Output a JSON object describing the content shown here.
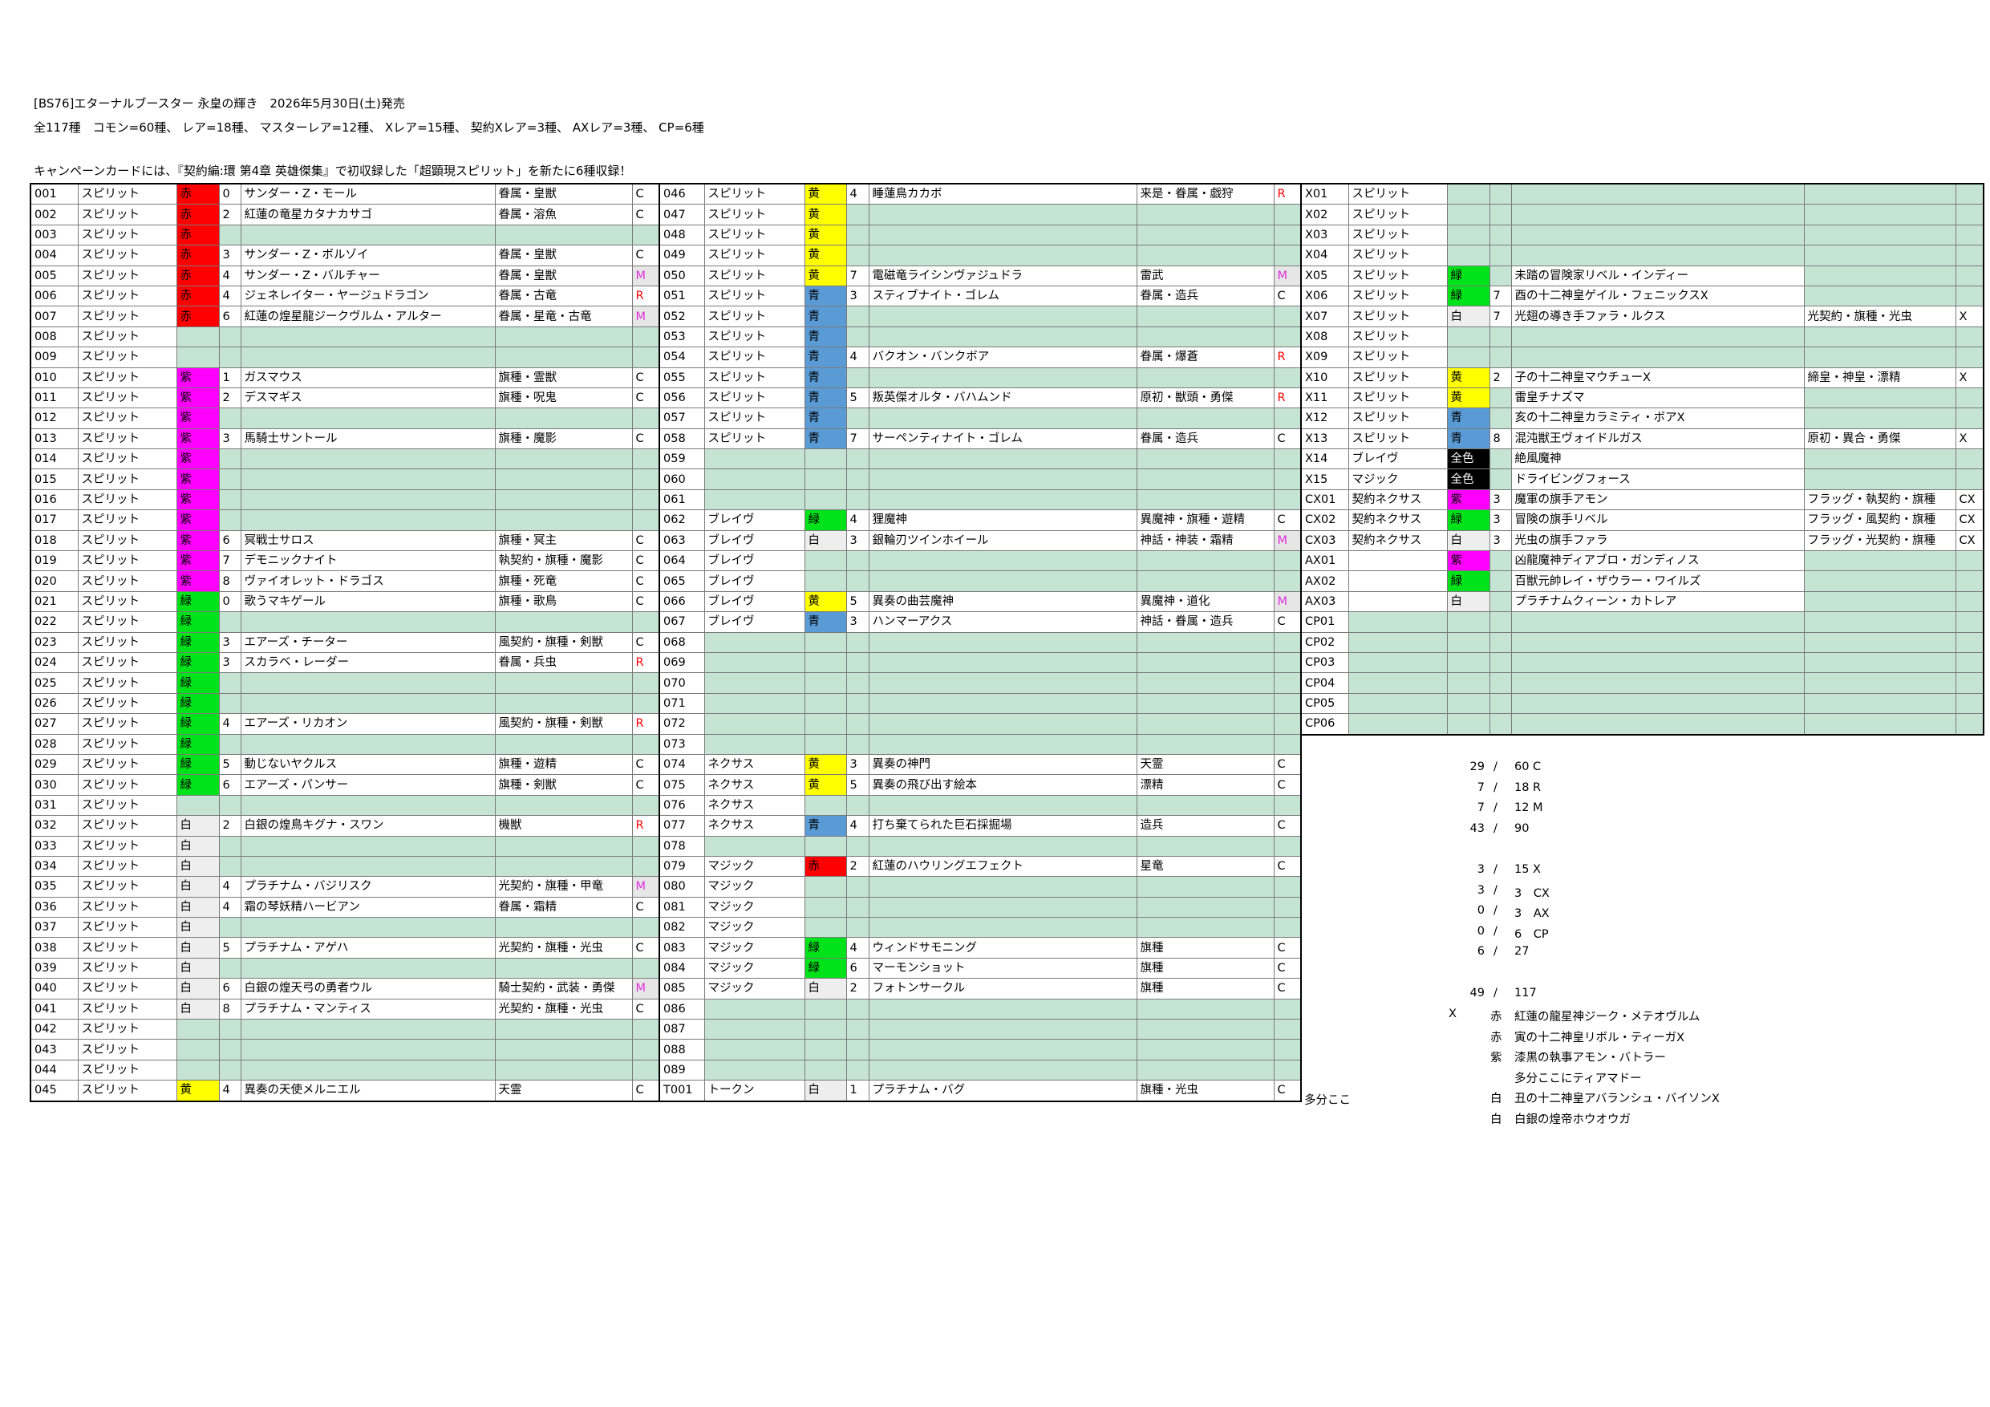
{
  "header": {
    "title": "[BS76]エターナルブースター 永皇の輝き　2026年5月30日(土)発売",
    "summary": "全117種　コモン=60種、 レア=18種、 マスターレア=12種、 Xレア=15種、 契約Xレア=3種、 AXレア=3種、 CP=6種",
    "note": "キャンペーンカードには、『契約編:環 第4章 英雄傑集』で初収録した「超顕現スピリット」を新たに6種収録！"
  },
  "cell_colors": {
    "赤": "#ff0000",
    "紫": "#ff00ff",
    "緑": "#00e21a",
    "黄": "#ffff00",
    "青": "#5b9bd5",
    "白": "#eeeeee",
    "全色": "#000000"
  },
  "rarity_colors": {
    "M": "#e030e0",
    "R": "#ff0000"
  },
  "empty_fill": "#c6e4d4",
  "tables": [
    {
      "rows": [
        [
          "001",
          "スピリット",
          "赤",
          "0",
          "サンダー・Z・モール",
          "眷属・皇獣",
          "C"
        ],
        [
          "002",
          "スピリット",
          "赤",
          "2",
          "紅蓮の竜星カタナカサゴ",
          "眷属・溶魚",
          "C"
        ],
        [
          "003",
          "スピリット",
          "赤",
          null,
          null,
          null,
          null
        ],
        [
          "004",
          "スピリット",
          "赤",
          "3",
          "サンダー・Z・ボルゾイ",
          "眷属・皇獣",
          "C"
        ],
        [
          "005",
          "スピリット",
          "赤",
          "4",
          "サンダー・Z・バルチャー",
          "眷属・皇獣",
          "M"
        ],
        [
          "006",
          "スピリット",
          "赤",
          "4",
          "ジェネレイター・ヤージュドラゴン",
          "眷属・古竜",
          "R"
        ],
        [
          "007",
          "スピリット",
          "赤",
          "6",
          "紅蓮の煌星龍ジークヴルム・アルター",
          "眷属・星竜・古竜",
          "M"
        ],
        [
          "008",
          "スピリット",
          null,
          null,
          null,
          null,
          null
        ],
        [
          "009",
          "スピリット",
          null,
          null,
          null,
          null,
          null
        ],
        [
          "010",
          "スピリット",
          "紫",
          "1",
          "ガスマウス",
          "旗種・霊獣",
          "C"
        ],
        [
          "011",
          "スピリット",
          "紫",
          "2",
          "デスマギス",
          "旗種・呪鬼",
          "C"
        ],
        [
          "012",
          "スピリット",
          "紫",
          null,
          null,
          null,
          null
        ],
        [
          "013",
          "スピリット",
          "紫",
          "3",
          "馬騎士サントール",
          "旗種・魔影",
          "C"
        ],
        [
          "014",
          "スピリット",
          "紫",
          null,
          null,
          null,
          null
        ],
        [
          "015",
          "スピリット",
          "紫",
          null,
          null,
          null,
          null
        ],
        [
          "016",
          "スピリット",
          "紫",
          null,
          null,
          null,
          null
        ],
        [
          "017",
          "スピリット",
          "紫",
          null,
          null,
          null,
          null
        ],
        [
          "018",
          "スピリット",
          "紫",
          "6",
          "冥戦士サロス",
          "旗種・冥主",
          "C"
        ],
        [
          "019",
          "スピリット",
          "紫",
          "7",
          "デモニックナイト",
          "執契約・旗種・魔影",
          "C"
        ],
        [
          "020",
          "スピリット",
          "紫",
          "8",
          "ヴァイオレット・ドラゴス",
          "旗種・死竜",
          "C"
        ],
        [
          "021",
          "スピリット",
          "緑",
          "0",
          "歌うマキゲール",
          "旗種・歌鳥",
          "C"
        ],
        [
          "022",
          "スピリット",
          "緑",
          null,
          null,
          null,
          null
        ],
        [
          "023",
          "スピリット",
          "緑",
          "3",
          "エアーズ・チーター",
          "風契約・旗種・剣獣",
          "C"
        ],
        [
          "024",
          "スピリット",
          "緑",
          "3",
          "スカラベ・レーダー",
          "眷属・兵虫",
          "R"
        ],
        [
          "025",
          "スピリット",
          "緑",
          null,
          null,
          null,
          null
        ],
        [
          "026",
          "スピリット",
          "緑",
          null,
          null,
          null,
          null
        ],
        [
          "027",
          "スピリット",
          "緑",
          "4",
          "エアーズ・リカオン",
          "風契約・旗種・剣獣",
          "R"
        ],
        [
          "028",
          "スピリット",
          "緑",
          null,
          null,
          null,
          null
        ],
        [
          "029",
          "スピリット",
          "緑",
          "5",
          "動じないヤクルス",
          "旗種・遊精",
          "C"
        ],
        [
          "030",
          "スピリット",
          "緑",
          "6",
          "エアーズ・パンサー",
          "旗種・剣獣",
          "C"
        ],
        [
          "031",
          "スピリット",
          null,
          null,
          null,
          null,
          null
        ],
        [
          "032",
          "スピリット",
          "白",
          "2",
          "白銀の煌鳥キグナ・スワン",
          "機獣",
          "R"
        ],
        [
          "033",
          "スピリット",
          "白",
          null,
          null,
          null,
          null
        ],
        [
          "034",
          "スピリット",
          "白",
          null,
          null,
          null,
          null
        ],
        [
          "035",
          "スピリット",
          "白",
          "4",
          "プラチナム・バジリスク",
          "光契約・旗種・甲竜",
          "M"
        ],
        [
          "036",
          "スピリット",
          "白",
          "4",
          "霜の琴妖精ハービアン",
          "眷属・霜精",
          "C"
        ],
        [
          "037",
          "スピリット",
          "白",
          null,
          null,
          null,
          null
        ],
        [
          "038",
          "スピリット",
          "白",
          "5",
          "プラチナム・アゲハ",
          "光契約・旗種・光虫",
          "C"
        ],
        [
          "039",
          "スピリット",
          "白",
          null,
          null,
          null,
          null
        ],
        [
          "040",
          "スピリット",
          "白",
          "6",
          "白銀の煌天弓の勇者ウル",
          "騎士契約・武装・勇傑",
          "M"
        ],
        [
          "041",
          "スピリット",
          "白",
          "8",
          "プラチナム・マンティス",
          "光契約・旗種・光虫",
          "C"
        ],
        [
          "042",
          "スピリット",
          null,
          null,
          null,
          null,
          null
        ],
        [
          "043",
          "スピリット",
          null,
          null,
          null,
          null,
          null
        ],
        [
          "044",
          "スピリット",
          null,
          null,
          null,
          null,
          null
        ],
        [
          "045",
          "スピリット",
          "黄",
          "4",
          "異奏の天使メルニエル",
          "天霊",
          "C"
        ]
      ]
    },
    {
      "rows": [
        [
          "046",
          "スピリット",
          "黄",
          "4",
          "睡蓮鳥カカボ",
          "来是・眷属・戯狩",
          "R"
        ],
        [
          "047",
          "スピリット",
          "黄",
          null,
          null,
          null,
          null
        ],
        [
          "048",
          "スピリット",
          "黄",
          null,
          null,
          null,
          null
        ],
        [
          "049",
          "スピリット",
          "黄",
          null,
          null,
          null,
          null
        ],
        [
          "050",
          "スピリット",
          "黄",
          "7",
          "電磁竜ライシンヴァジュドラ",
          "雷武",
          "M"
        ],
        [
          "051",
          "スピリット",
          "青",
          "3",
          "スティブナイト・ゴレム",
          "眷属・造兵",
          "C"
        ],
        [
          "052",
          "スピリット",
          "青",
          null,
          null,
          null,
          null
        ],
        [
          "053",
          "スピリット",
          "青",
          null,
          null,
          null,
          null
        ],
        [
          "054",
          "スピリット",
          "青",
          "4",
          "バクオン・バンクボア",
          "眷属・爆蒼",
          "R"
        ],
        [
          "055",
          "スピリット",
          "青",
          null,
          null,
          null,
          null
        ],
        [
          "056",
          "スピリット",
          "青",
          "5",
          "叛英傑オルタ・バハムンド",
          "原初・獣頭・勇傑",
          "R"
        ],
        [
          "057",
          "スピリット",
          "青",
          null,
          null,
          null,
          null
        ],
        [
          "058",
          "スピリット",
          "青",
          "7",
          "サーペンティナイト・ゴレム",
          "眷属・造兵",
          "C"
        ],
        [
          "059",
          null,
          null,
          null,
          null,
          null,
          null
        ],
        [
          "060",
          null,
          null,
          null,
          null,
          null,
          null
        ],
        [
          "061",
          null,
          null,
          null,
          null,
          null,
          null
        ],
        [
          "062",
          "ブレイヴ",
          "緑",
          "4",
          "狸魔神",
          "異魔神・旗種・遊精",
          "C"
        ],
        [
          "063",
          "ブレイヴ",
          "白",
          "3",
          "銀輪刃ツインホイール",
          "神話・神装・霜精",
          "M"
        ],
        [
          "064",
          "ブレイヴ",
          null,
          null,
          null,
          null,
          null
        ],
        [
          "065",
          "ブレイヴ",
          null,
          null,
          null,
          null,
          null
        ],
        [
          "066",
          "ブレイヴ",
          "黄",
          "5",
          "異奏の曲芸魔神",
          "異魔神・道化",
          "M"
        ],
        [
          "067",
          "ブレイヴ",
          "青",
          "3",
          "ハンマーアクス",
          "神話・眷属・造兵",
          "C"
        ],
        [
          "068",
          null,
          null,
          null,
          null,
          null,
          null
        ],
        [
          "069",
          null,
          null,
          null,
          null,
          null,
          null
        ],
        [
          "070",
          null,
          null,
          null,
          null,
          null,
          null
        ],
        [
          "071",
          null,
          null,
          null,
          null,
          null,
          null
        ],
        [
          "072",
          null,
          null,
          null,
          null,
          null,
          null
        ],
        [
          "073",
          null,
          null,
          null,
          null,
          null,
          null
        ],
        [
          "074",
          "ネクサス",
          "黄",
          "3",
          "異奏の神門",
          "天霊",
          "C"
        ],
        [
          "075",
          "ネクサス",
          "黄",
          "5",
          "異奏の飛び出す絵本",
          "漂精",
          "C"
        ],
        [
          "076",
          "ネクサス",
          null,
          null,
          null,
          null,
          null
        ],
        [
          "077",
          "ネクサス",
          "青",
          "4",
          "打ち棄てられた巨石採掘場",
          "造兵",
          "C"
        ],
        [
          "078",
          null,
          null,
          null,
          null,
          null,
          null
        ],
        [
          "079",
          "マジック",
          "赤",
          "2",
          "紅蓮のハウリングエフェクト",
          "星竜",
          "C"
        ],
        [
          "080",
          "マジック",
          null,
          null,
          null,
          null,
          null
        ],
        [
          "081",
          "マジック",
          null,
          null,
          null,
          null,
          null
        ],
        [
          "082",
          "マジック",
          null,
          null,
          null,
          null,
          null
        ],
        [
          "083",
          "マジック",
          "緑",
          "4",
          "ウィンドサモニング",
          "旗種",
          "C"
        ],
        [
          "084",
          "マジック",
          "緑",
          "6",
          "マーモンショット",
          "旗種",
          "C"
        ],
        [
          "085",
          "マジック",
          "白",
          "2",
          "フォトンサークル",
          "旗種",
          "C"
        ],
        [
          "086",
          null,
          null,
          null,
          null,
          null,
          null
        ],
        [
          "087",
          null,
          null,
          null,
          null,
          null,
          null
        ],
        [
          "088",
          null,
          null,
          null,
          null,
          null,
          null
        ],
        [
          "089",
          null,
          null,
          null,
          null,
          null,
          null
        ],
        [
          "T001",
          "トークン",
          "白",
          "1",
          "プラチナム・バグ",
          "旗種・光虫",
          "C"
        ]
      ]
    },
    {
      "rows": [
        [
          "X01",
          "スピリット",
          null,
          null,
          null,
          null,
          null
        ],
        [
          "X02",
          "スピリット",
          null,
          null,
          null,
          null,
          null
        ],
        [
          "X03",
          "スピリット",
          null,
          null,
          null,
          null,
          null
        ],
        [
          "X04",
          "スピリット",
          null,
          null,
          null,
          null,
          null
        ],
        [
          "X05",
          "スピリット",
          "緑",
          null,
          "未踏の冒険家リベル・インディー",
          null,
          null
        ],
        [
          "X06",
          "スピリット",
          "緑",
          "7",
          "酉の十二神皇ゲイル・フェニックスX",
          null,
          null
        ],
        [
          "X07",
          "スピリット",
          "白",
          "7",
          "光翅の導き手ファラ・ルクス",
          "光契約・旗種・光虫",
          "X"
        ],
        [
          "X08",
          "スピリット",
          null,
          null,
          null,
          null,
          null
        ],
        [
          "X09",
          "スピリット",
          null,
          null,
          null,
          null,
          null
        ],
        [
          "X10",
          "スピリット",
          "黄",
          "2",
          "子の十二神皇マウチューX",
          "締皇・神皇・漂精",
          "X"
        ],
        [
          "X11",
          "スピリット",
          "黄",
          null,
          "雷皇チナズマ",
          null,
          null
        ],
        [
          "X12",
          "スピリット",
          "青",
          null,
          "亥の十二神皇カラミティ・ボアX",
          null,
          null
        ],
        [
          "X13",
          "スピリット",
          "青",
          "8",
          "混沌獣王ヴォイドルガス",
          "原初・異合・勇傑",
          "X"
        ],
        [
          "X14",
          "ブレイヴ",
          "全色",
          null,
          "絶風魔神",
          null,
          null
        ],
        [
          "X15",
          "マジック",
          "全色",
          null,
          "ドライビングフォース",
          null,
          null
        ],
        [
          "CX01",
          "契約ネクサス",
          "紫",
          "3",
          "魔軍の旗手アモン",
          "フラッグ・執契約・旗種",
          "CX"
        ],
        [
          "CX02",
          "契約ネクサス",
          "緑",
          "3",
          "冒険の旗手リベル",
          "フラッグ・風契約・旗種",
          "CX"
        ],
        [
          "CX03",
          "契約ネクサス",
          "白",
          "3",
          "光虫の旗手ファラ",
          "フラッグ・光契約・旗種",
          "CX"
        ],
        [
          "AX01",
          null,
          "紫",
          null,
          "凶龍魔神ディアブロ・ガンディノス",
          null,
          null
        ],
        [
          "AX02",
          null,
          "緑",
          null,
          "百獣元帥レイ・ザウラー・ワイルズ",
          null,
          null
        ],
        [
          "AX03",
          null,
          "白",
          null,
          "プラチナムクィーン・カトレア",
          null,
          null
        ],
        [
          "CP01",
          null,
          null,
          null,
          null,
          null,
          null
        ],
        [
          "CP02",
          null,
          null,
          null,
          null,
          null,
          null
        ],
        [
          "CP03",
          null,
          null,
          null,
          null,
          null,
          null
        ],
        [
          "CP04",
          null,
          null,
          null,
          null,
          null,
          null
        ],
        [
          "CP05",
          null,
          null,
          null,
          null,
          null,
          null
        ],
        [
          "CP06",
          null,
          null,
          null,
          null,
          null,
          null
        ]
      ]
    }
  ],
  "side_note": "多分ここ",
  "counts": [
    [
      "29",
      "/",
      "60 C"
    ],
    [
      "7",
      "/",
      "18 R"
    ],
    [
      "7",
      "/",
      "12 M"
    ],
    [
      "43",
      "/",
      "90"
    ],
    null,
    [
      "3",
      "/",
      "15 X"
    ],
    [
      "3",
      "/",
      "3　CX"
    ],
    [
      "0",
      "/",
      "3　AX"
    ],
    [
      "0",
      "/",
      "6　CP"
    ],
    [
      "6",
      "/",
      "27"
    ],
    null,
    [
      "49",
      "/",
      "117"
    ]
  ],
  "extras": [
    [
      "X",
      "赤",
      "紅蓮の龍星神ジーク・メテオヴルム"
    ],
    [
      null,
      "赤",
      "寅の十二神皇リボル・ティーガX"
    ],
    [
      null,
      "紫",
      "漆黒の執事アモン・バトラー"
    ],
    [
      null,
      null,
      "多分ここにティアマドー"
    ],
    [
      null,
      "白",
      "丑の十二神皇アバランシュ・バイソンX"
    ],
    [
      null,
      "白",
      "白銀の煌帝ホウオウガ"
    ]
  ]
}
